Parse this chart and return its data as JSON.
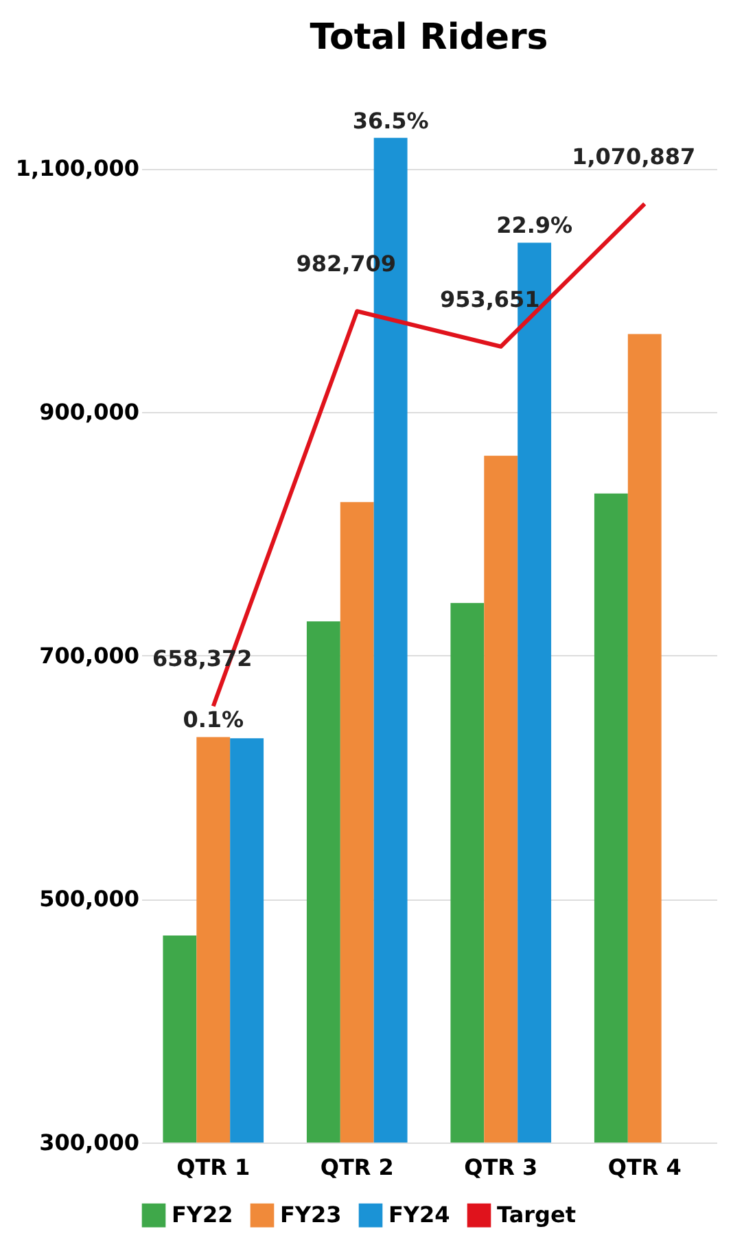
{
  "chart_data": {
    "type": "bar",
    "title": "Total Riders",
    "categories": [
      "QTR 1",
      "QTR 2",
      "QTR 3",
      "QTR 4"
    ],
    "series": [
      {
        "name": "FY22",
        "color": "#3fa84a",
        "values": [
          470000,
          728000,
          743000,
          833000
        ]
      },
      {
        "name": "FY23",
        "color": "#f08a3a",
        "values": [
          633000,
          826000,
          864000,
          964000
        ]
      },
      {
        "name": "FY24",
        "color": "#1b93d6",
        "values": [
          632000,
          1125000,
          1039000,
          null
        ]
      },
      {
        "name": "Target",
        "type": "line",
        "color": "#e0131c",
        "values": [
          658372,
          982709,
          953651,
          1070887
        ],
        "value_labels": [
          "658,372",
          "982,709",
          "953,651",
          "1,070,887"
        ]
      }
    ],
    "annotations": [
      "0.1%",
      "36.5%",
      "22.9%"
    ],
    "ylim": [
      300000,
      1130000
    ],
    "yticks": [
      {
        "value": 300000,
        "label": "300,000"
      },
      {
        "value": 500000,
        "label": "500,000"
      },
      {
        "value": 700000,
        "label": "700,000"
      },
      {
        "value": 900000,
        "label": "900,000"
      },
      {
        "value": 1100000,
        "label": "1,100,000"
      }
    ],
    "grid": "y",
    "legend": "bottom"
  }
}
